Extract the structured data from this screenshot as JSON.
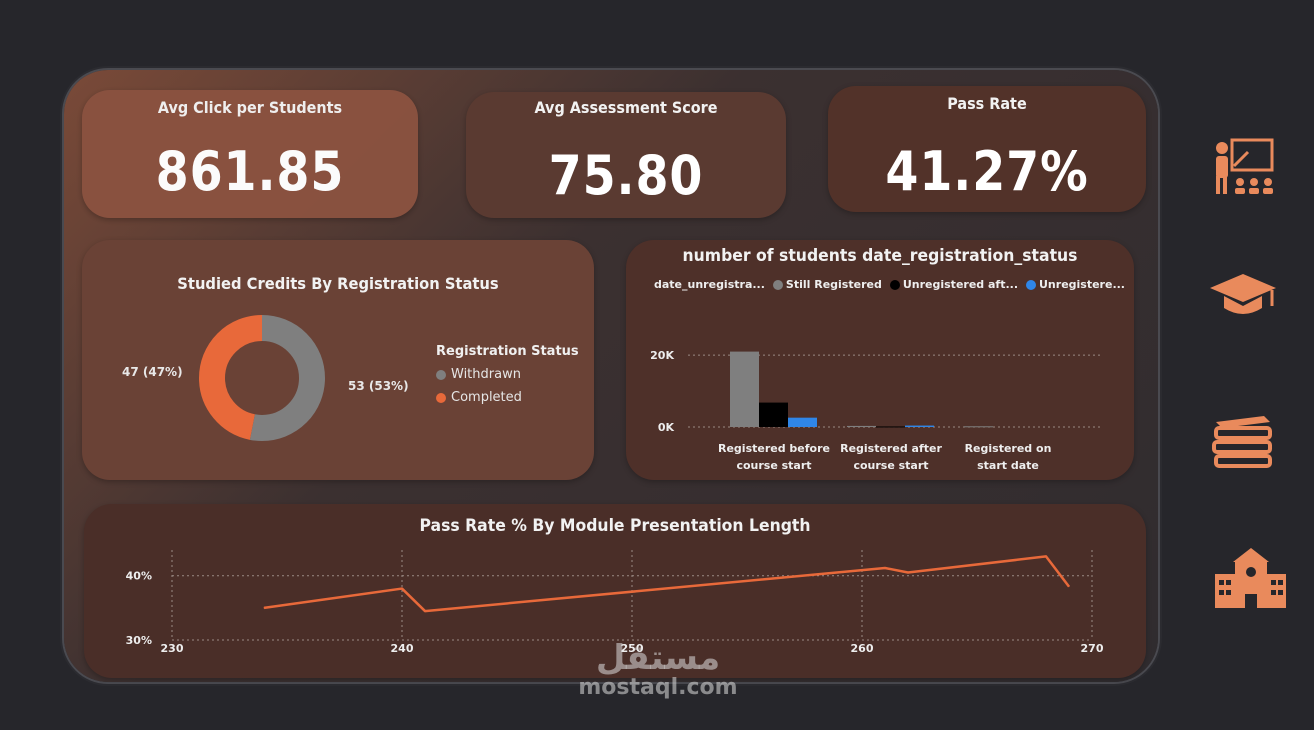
{
  "kpis": [
    {
      "title": "Avg Click per Students",
      "value": "861.85"
    },
    {
      "title": "Avg Assessment Score",
      "value": "75.80"
    },
    {
      "title": "Pass Rate",
      "value": "41.27%"
    }
  ],
  "colors": {
    "accent": "#e8693a",
    "card": "#4a3029",
    "background": "#26262b",
    "grey": "#7f7f7f",
    "blue": "#2f86e8",
    "black": "#000000"
  },
  "side_icons": [
    "teacher-icon",
    "graduation-cap-icon",
    "books-icon",
    "school-icon"
  ],
  "watermark": {
    "arabic": "مستقل",
    "latin": "mostaql.com"
  },
  "chart_data": [
    {
      "type": "pie",
      "title": "Studied Credits By Registration Status",
      "legend_title": "Registration Status",
      "legend_position": "right",
      "slices": [
        {
          "name": "Withdrawn",
          "value": 53,
          "label": "53 (53%)",
          "color": "#7f7f7f"
        },
        {
          "name": "Completed",
          "value": 47,
          "label": "47 (47%)",
          "color": "#e8693a"
        }
      ]
    },
    {
      "type": "bar",
      "title": "number of students date_registration_status",
      "legend_title": "date_unregistra...",
      "legend_position": "top-left",
      "categories": [
        "Registered before course start",
        "Registered after course start",
        "Registered on start date"
      ],
      "series": [
        {
          "name": "Still Registered",
          "color": "#7f7f7f",
          "values": [
            21000,
            300,
            200
          ]
        },
        {
          "name": "Unregistered aft...",
          "color": "#000000",
          "values": [
            6800,
            150,
            0
          ]
        },
        {
          "name": "Unregistere...",
          "color": "#2f86e8",
          "values": [
            2600,
            400,
            0
          ]
        }
      ],
      "yticks": [
        "20K",
        "0K"
      ],
      "ylim": [
        0,
        22000
      ],
      "grid": true
    },
    {
      "type": "line",
      "title": "Pass Rate % By Module Presentation Length",
      "x": [
        234,
        240,
        241,
        261,
        262,
        268,
        269
      ],
      "y": [
        35.0,
        38.0,
        34.5,
        41.2,
        40.5,
        43.0,
        38.3
      ],
      "xticks": [
        "230",
        "240",
        "250",
        "260",
        "270"
      ],
      "yticks": [
        "40%",
        "30%"
      ],
      "xlim": [
        230,
        270
      ],
      "ylim": [
        30,
        44
      ],
      "color": "#e8693a",
      "grid": true
    }
  ]
}
